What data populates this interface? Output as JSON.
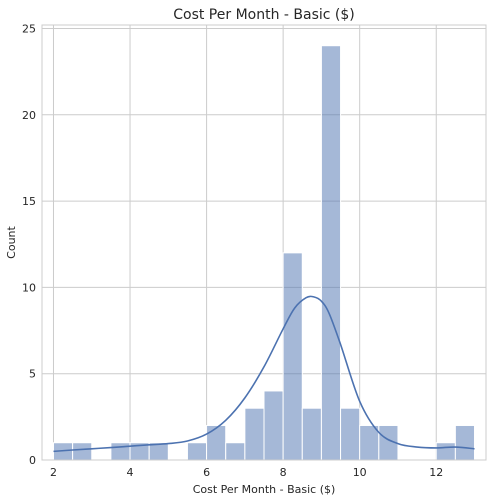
{
  "chart_data": {
    "type": "histogram",
    "title": "Cost Per Month - Basic ($)",
    "xlabel": "Cost Per Month - Basic ($)",
    "ylabel": "Count",
    "xlim": [
      1.7,
      13.3
    ],
    "ylim": [
      0,
      25.2
    ],
    "xticks": [
      "2",
      "4",
      "6",
      "8",
      "10",
      "12"
    ],
    "yticks": [
      "0",
      "5",
      "10",
      "15",
      "20",
      "25"
    ],
    "grid": true,
    "bar_color": "#4c72b0",
    "kde_color": "#4c72b0",
    "bins": [
      {
        "x0": 2.0,
        "x1": 2.5,
        "count": 1
      },
      {
        "x0": 2.5,
        "x1": 3.0,
        "count": 1
      },
      {
        "x0": 3.0,
        "x1": 3.5,
        "count": 0
      },
      {
        "x0": 3.5,
        "x1": 4.0,
        "count": 1
      },
      {
        "x0": 4.0,
        "x1": 4.5,
        "count": 1
      },
      {
        "x0": 4.5,
        "x1": 5.0,
        "count": 1
      },
      {
        "x0": 5.0,
        "x1": 5.5,
        "count": 0
      },
      {
        "x0": 5.5,
        "x1": 6.0,
        "count": 1
      },
      {
        "x0": 6.0,
        "x1": 6.5,
        "count": 2
      },
      {
        "x0": 6.5,
        "x1": 7.0,
        "count": 1
      },
      {
        "x0": 7.0,
        "x1": 7.5,
        "count": 3
      },
      {
        "x0": 7.5,
        "x1": 8.0,
        "count": 4
      },
      {
        "x0": 8.0,
        "x1": 8.5,
        "count": 12
      },
      {
        "x0": 8.5,
        "x1": 9.0,
        "count": 3
      },
      {
        "x0": 9.0,
        "x1": 9.5,
        "count": 24
      },
      {
        "x0": 9.5,
        "x1": 10.0,
        "count": 3
      },
      {
        "x0": 10.0,
        "x1": 10.5,
        "count": 2
      },
      {
        "x0": 10.5,
        "x1": 11.0,
        "count": 2
      },
      {
        "x0": 11.0,
        "x1": 11.5,
        "count": 0
      },
      {
        "x0": 11.5,
        "x1": 12.0,
        "count": 0
      },
      {
        "x0": 12.0,
        "x1": 12.5,
        "count": 1
      },
      {
        "x0": 12.5,
        "x1": 13.0,
        "count": 2
      }
    ],
    "kde": {
      "x": [
        2.0,
        2.5,
        3.0,
        3.5,
        4.0,
        4.5,
        5.0,
        5.5,
        6.0,
        6.5,
        7.0,
        7.5,
        8.0,
        8.3,
        8.6,
        8.8,
        9.0,
        9.2,
        9.5,
        10.0,
        10.5,
        11.0,
        11.5,
        12.0,
        12.5,
        13.0
      ],
      "y": [
        0.5,
        0.58,
        0.65,
        0.72,
        0.8,
        0.88,
        0.95,
        1.1,
        1.5,
        2.3,
        3.6,
        5.4,
        7.6,
        8.8,
        9.4,
        9.45,
        9.2,
        8.5,
        6.7,
        3.4,
        1.6,
        0.95,
        0.75,
        0.7,
        0.75,
        0.65
      ]
    }
  }
}
